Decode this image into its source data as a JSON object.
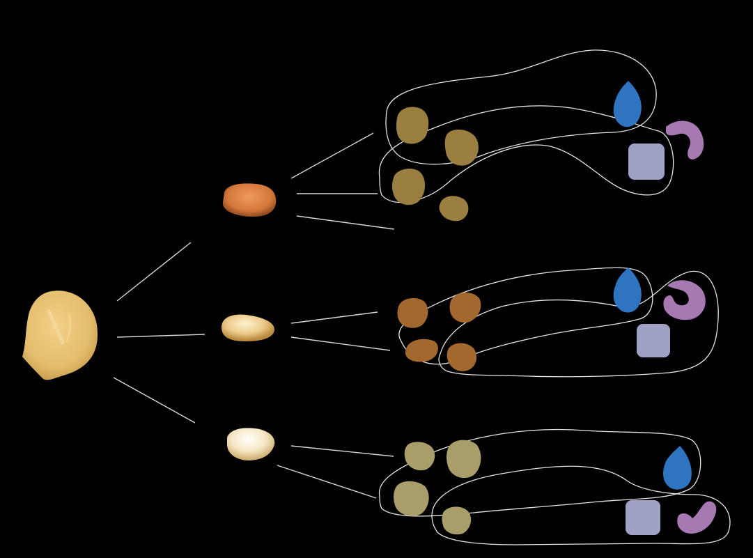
{
  "colors": {
    "background": "#000000",
    "connector": "#d9d9d9",
    "outline": "#e6e6e6",
    "root": "#e3bd6c",
    "cluster_a_seed": "#d4773b",
    "cluster_b_seed": "#ecc98a",
    "cluster_c_seed": "#f6e7c4",
    "cluster_a_blob": "#9a7f41",
    "cluster_b_blob": "#a2682d",
    "cluster_c_blob": "#a99e69",
    "drop": "#2f74c0",
    "hook": "#a779b2",
    "square": "#9fa2c4"
  },
  "icons": [
    "rounded-body-icon",
    "seed-icon",
    "drop-icon",
    "hook-icon",
    "square-icon"
  ]
}
